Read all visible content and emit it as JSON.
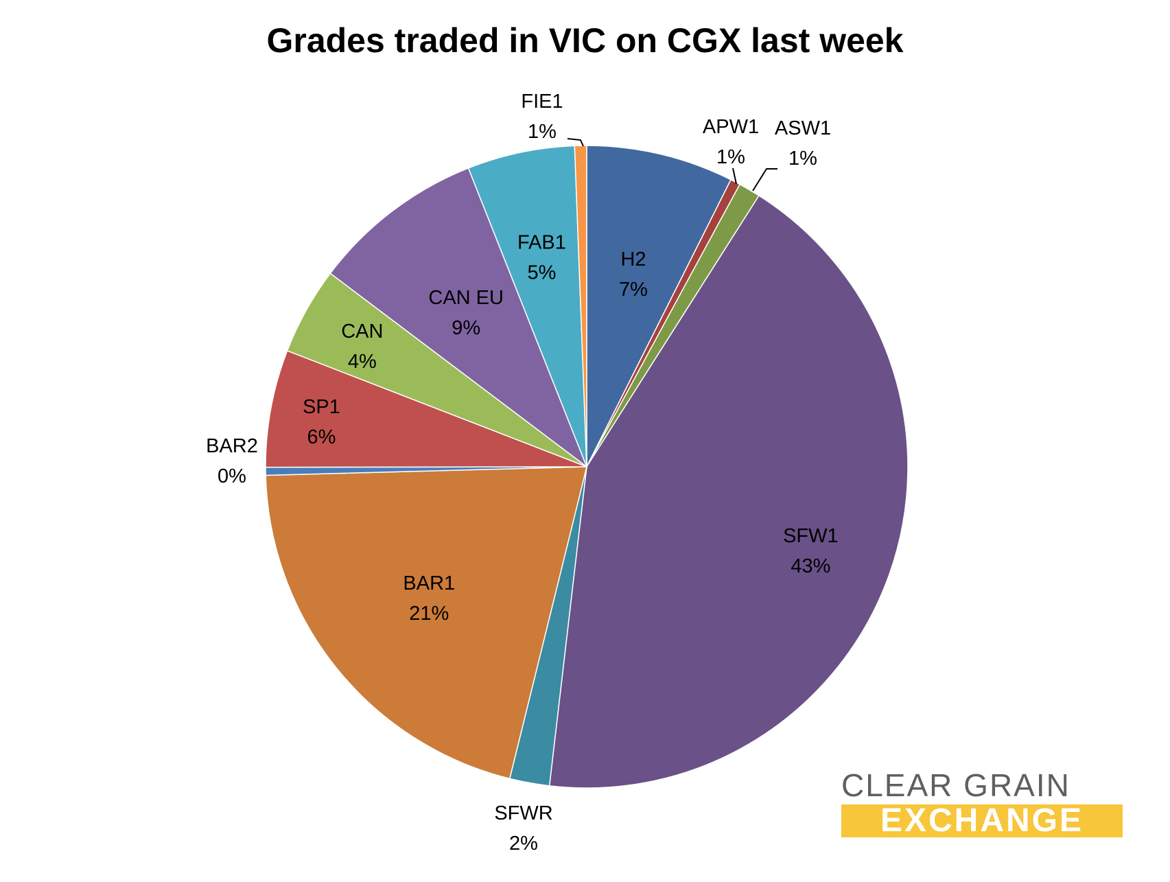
{
  "chart_data": {
    "type": "pie",
    "title": "Grades traded in VIC on CGX last week",
    "start_angle_deg": 0,
    "direction": "clockwise",
    "slices": [
      {
        "label": "H2",
        "value": 7.4,
        "display": "7%",
        "color": "#4169a0"
      },
      {
        "label": "APW1",
        "value": 0.5,
        "display": "1%",
        "color": "#a5413e"
      },
      {
        "label": "ASW1",
        "value": 1.1,
        "display": "1%",
        "color": "#7d9b46"
      },
      {
        "label": "SFW1",
        "value": 42.8,
        "display": "43%",
        "color": "#6a5187"
      },
      {
        "label": "SFWR",
        "value": 2.0,
        "display": "2%",
        "color": "#3b8ba3"
      },
      {
        "label": "BAR1",
        "value": 20.7,
        "display": "21%",
        "color": "#cc7b39"
      },
      {
        "label": "BAR2",
        "value": 0.4,
        "display": "0%",
        "color": "#4a7ebb"
      },
      {
        "label": "SP1",
        "value": 5.9,
        "display": "6%",
        "color": "#c0504d"
      },
      {
        "label": "CAN",
        "value": 4.4,
        "display": "4%",
        "color": "#9bbb59"
      },
      {
        "label": "CAN EU",
        "value": 8.7,
        "display": "9%",
        "color": "#8064a2"
      },
      {
        "label": "FAB1",
        "value": 5.4,
        "display": "5%",
        "color": "#4bacc6"
      },
      {
        "label": "FIE1",
        "value": 0.6,
        "display": "1%",
        "color": "#f79646"
      }
    ]
  },
  "logo": {
    "line1": "CLEAR GRAIN",
    "line2": "EXCHANGE"
  }
}
